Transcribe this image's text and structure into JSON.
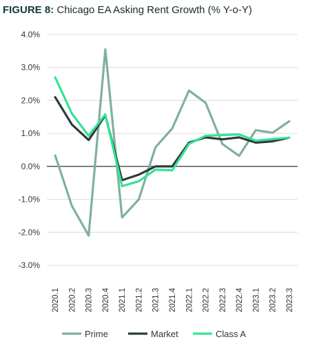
{
  "title_lead": "FIGURE 8:",
  "title_rest": "Chicago EA Asking Rent Growth (% Y-o-Y)",
  "chart_data": {
    "type": "line",
    "title": "FIGURE 8: Chicago EA Asking Rent Growth (% Y-o-Y)",
    "x": [
      "2020.1",
      "2020.2",
      "2020.3",
      "2020.4",
      "2021.1",
      "2021.2",
      "2021.3",
      "2021.4",
      "2022.1",
      "2022.2",
      "2022.3",
      "2022.4",
      "2023.1",
      "2023.2",
      "2023.3"
    ],
    "y_ticks": [
      "4.0%",
      "3.0%",
      "2.0%",
      "1.0%",
      "0.0%",
      "-1.0%",
      "-2.0%",
      "-3.0%"
    ],
    "ylim": [
      -3.0,
      4.0
    ],
    "grid": "horizontal",
    "legend": "bottom",
    "series": [
      {
        "name": "Prime",
        "color": "#7fb09f",
        "values": [
          0.33,
          -1.2,
          -2.1,
          3.55,
          -1.55,
          -1.0,
          0.58,
          1.15,
          2.3,
          1.93,
          0.68,
          0.32,
          1.1,
          1.02,
          1.37
        ]
      },
      {
        "name": "Market",
        "color": "#2e3a3a",
        "values": [
          2.1,
          1.27,
          0.8,
          1.55,
          -0.42,
          -0.25,
          0.0,
          0.0,
          0.72,
          0.88,
          0.82,
          0.88,
          0.72,
          0.76,
          0.87
        ]
      },
      {
        "name": "Class A",
        "color": "#33e396",
        "values": [
          2.7,
          1.6,
          0.93,
          1.58,
          -0.6,
          -0.45,
          -0.1,
          -0.12,
          0.68,
          0.93,
          0.95,
          0.97,
          0.78,
          0.83,
          0.87
        ]
      }
    ]
  }
}
